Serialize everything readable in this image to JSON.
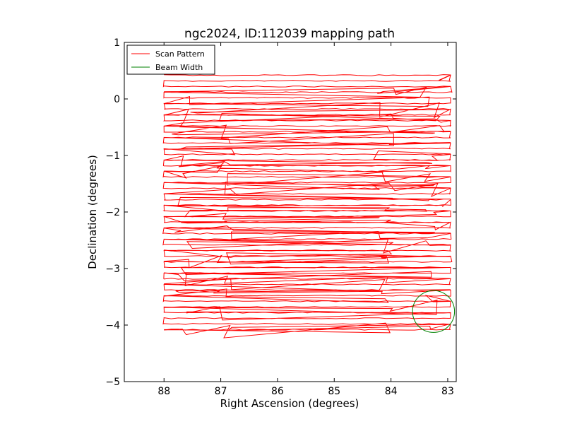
{
  "chart_data": {
    "type": "line",
    "title": "ngc2024, ID:112039 mapping path",
    "xlabel": "Right Ascension (degrees)",
    "ylabel": "Declination (degrees)",
    "xlim": [
      88.7,
      82.85
    ],
    "ylim": [
      -5,
      1
    ],
    "x_ticks": [
      88,
      87,
      86,
      85,
      84,
      83
    ],
    "y_ticks": [
      1,
      0,
      -1,
      -2,
      -3,
      -4,
      -5
    ],
    "x_tick_labels": [
      "88",
      "87",
      "86",
      "85",
      "84",
      "83"
    ],
    "y_tick_labels": [
      "1",
      "0",
      "−1",
      "−2",
      "−3",
      "−4",
      "−5"
    ],
    "legend_position": "top-left",
    "grid": false,
    "series": [
      {
        "name": "Scan Pattern",
        "color": "#ff0000",
        "pattern": "boustrophedon raster",
        "ra_start": 88.0,
        "ra_end": 82.95,
        "dec_start": 0.42,
        "dec_end": -4.08,
        "row_count": 46,
        "turn_ra_1": 87.65,
        "turn_ra_2": 86.9,
        "turn_ra_3": 84.1,
        "turn_ra_4": 83.25
      },
      {
        "name": "Beam Width",
        "color": "#008000",
        "shape": "circle",
        "center_ra": 83.25,
        "center_dec": -3.76,
        "radius_deg": 0.37
      }
    ]
  }
}
